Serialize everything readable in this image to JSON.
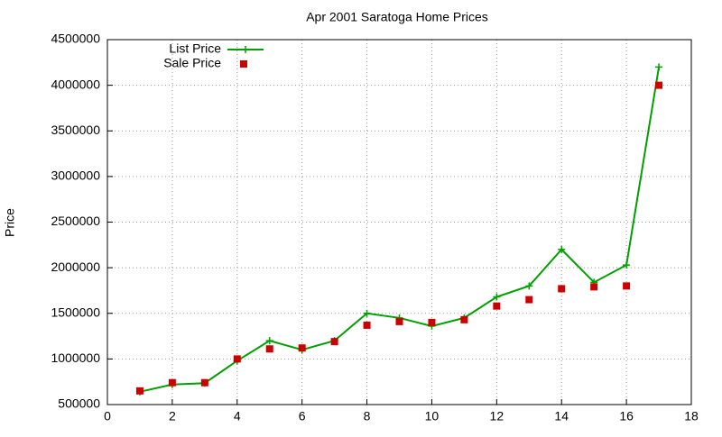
{
  "chart_data": {
    "type": "line",
    "title": "Apr 2001 Saratoga Home Prices",
    "y_label": "Price",
    "x": [
      1,
      2,
      3,
      4,
      5,
      6,
      7,
      8,
      9,
      10,
      11,
      12,
      13,
      14,
      15,
      16,
      17
    ],
    "series": [
      {
        "name": "List Price",
        "color": "#00a000",
        "style": "linespoints",
        "marker": "plus",
        "values": [
          640000,
          720000,
          735000,
          980000,
          1200000,
          1100000,
          1200000,
          1500000,
          1450000,
          1360000,
          1450000,
          1680000,
          1800000,
          2200000,
          1840000,
          2030000,
          4200000
        ]
      },
      {
        "name": "Sale Price",
        "color": "#cc0000",
        "style": "points",
        "marker": "square",
        "values": [
          650000,
          740000,
          740000,
          1000000,
          1110000,
          1120000,
          1190000,
          1370000,
          1410000,
          1400000,
          1430000,
          1580000,
          1650000,
          1770000,
          1790000,
          1800000,
          4000000
        ]
      }
    ],
    "xlim": [
      0,
      18
    ],
    "xticks": [
      0,
      2,
      4,
      6,
      8,
      10,
      12,
      14,
      16,
      18
    ],
    "ylim": [
      500000,
      4500000
    ],
    "yticks": [
      500000,
      1000000,
      1500000,
      2000000,
      2500000,
      3000000,
      3500000,
      4000000,
      4500000
    ],
    "grid": true,
    "legend": "top-left"
  }
}
